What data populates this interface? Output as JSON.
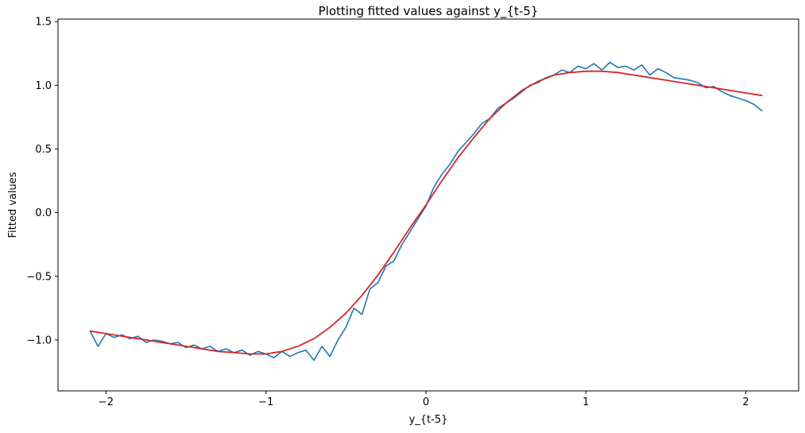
{
  "chart_data": {
    "type": "line",
    "title": "Plotting fitted values against y_{t-5}",
    "xlabel": "y_{t-5}",
    "ylabel": "Fitted values",
    "xlim": [
      -2.3,
      2.33
    ],
    "ylim": [
      -1.4,
      1.52
    ],
    "x_ticks": [
      -2,
      -1,
      0,
      1,
      2
    ],
    "x_tick_labels": [
      "−2",
      "−1",
      "0",
      "1",
      "2"
    ],
    "y_ticks": [
      -1.0,
      -0.5,
      0.0,
      0.5,
      1.0,
      1.5
    ],
    "y_tick_labels": [
      "−1.0",
      "−0.5",
      "0.0",
      "0.5",
      "1.0",
      "1.5"
    ],
    "grid": false,
    "legend": "none",
    "series": [
      {
        "role": "observed",
        "color": "#1f77b4",
        "x": [
          -2.1,
          -2.05,
          -2.0,
          -1.95,
          -1.9,
          -1.85,
          -1.8,
          -1.75,
          -1.7,
          -1.65,
          -1.6,
          -1.55,
          -1.5,
          -1.45,
          -1.4,
          -1.35,
          -1.3,
          -1.25,
          -1.2,
          -1.15,
          -1.1,
          -1.05,
          -1.0,
          -0.95,
          -0.9,
          -0.85,
          -0.8,
          -0.75,
          -0.7,
          -0.65,
          -0.6,
          -0.55,
          -0.5,
          -0.45,
          -0.4,
          -0.35,
          -0.3,
          -0.25,
          -0.2,
          -0.15,
          -0.1,
          -0.05,
          0.0,
          0.05,
          0.1,
          0.15,
          0.2,
          0.25,
          0.3,
          0.35,
          0.4,
          0.45,
          0.5,
          0.55,
          0.6,
          0.65,
          0.7,
          0.75,
          0.8,
          0.85,
          0.9,
          0.95,
          1.0,
          1.05,
          1.1,
          1.15,
          1.2,
          1.25,
          1.3,
          1.35,
          1.4,
          1.45,
          1.5,
          1.55,
          1.6,
          1.65,
          1.7,
          1.75,
          1.8,
          1.85,
          1.9,
          1.95,
          2.0,
          2.05,
          2.1
        ],
        "y": [
          -0.93,
          -1.05,
          -0.95,
          -0.98,
          -0.96,
          -0.99,
          -0.97,
          -1.02,
          -1.0,
          -1.01,
          -1.03,
          -1.02,
          -1.06,
          -1.04,
          -1.07,
          -1.05,
          -1.09,
          -1.07,
          -1.1,
          -1.08,
          -1.12,
          -1.09,
          -1.11,
          -1.14,
          -1.09,
          -1.13,
          -1.1,
          -1.08,
          -1.16,
          -1.05,
          -1.13,
          -1.0,
          -0.9,
          -0.75,
          -0.8,
          -0.6,
          -0.55,
          -0.42,
          -0.38,
          -0.25,
          -0.15,
          -0.05,
          0.05,
          0.2,
          0.3,
          0.38,
          0.48,
          0.55,
          0.62,
          0.7,
          0.74,
          0.82,
          0.86,
          0.9,
          0.95,
          1.0,
          1.02,
          1.06,
          1.08,
          1.12,
          1.1,
          1.15,
          1.13,
          1.17,
          1.12,
          1.18,
          1.14,
          1.15,
          1.12,
          1.16,
          1.08,
          1.13,
          1.1,
          1.06,
          1.05,
          1.04,
          1.02,
          0.98,
          0.99,
          0.95,
          0.92,
          0.9,
          0.88,
          0.85,
          0.8
        ]
      },
      {
        "role": "fitted",
        "color": "#d62728",
        "x": [
          -2.1,
          -2.0,
          -1.9,
          -1.8,
          -1.7,
          -1.6,
          -1.5,
          -1.4,
          -1.3,
          -1.2,
          -1.1,
          -1.0,
          -0.9,
          -0.8,
          -0.7,
          -0.6,
          -0.5,
          -0.4,
          -0.3,
          -0.2,
          -0.1,
          0.0,
          0.1,
          0.2,
          0.3,
          0.4,
          0.5,
          0.6,
          0.7,
          0.8,
          0.9,
          1.0,
          1.1,
          1.2,
          1.3,
          1.4,
          1.5,
          1.6,
          1.7,
          1.8,
          1.9,
          2.0,
          2.1
        ],
        "y": [
          -0.93,
          -0.95,
          -0.97,
          -0.99,
          -1.01,
          -1.03,
          -1.05,
          -1.07,
          -1.09,
          -1.1,
          -1.11,
          -1.11,
          -1.09,
          -1.05,
          -0.99,
          -0.9,
          -0.79,
          -0.65,
          -0.49,
          -0.31,
          -0.12,
          0.06,
          0.25,
          0.43,
          0.59,
          0.74,
          0.86,
          0.96,
          1.03,
          1.08,
          1.1,
          1.11,
          1.11,
          1.1,
          1.08,
          1.06,
          1.04,
          1.02,
          1.0,
          0.98,
          0.96,
          0.94,
          0.92
        ]
      }
    ]
  }
}
